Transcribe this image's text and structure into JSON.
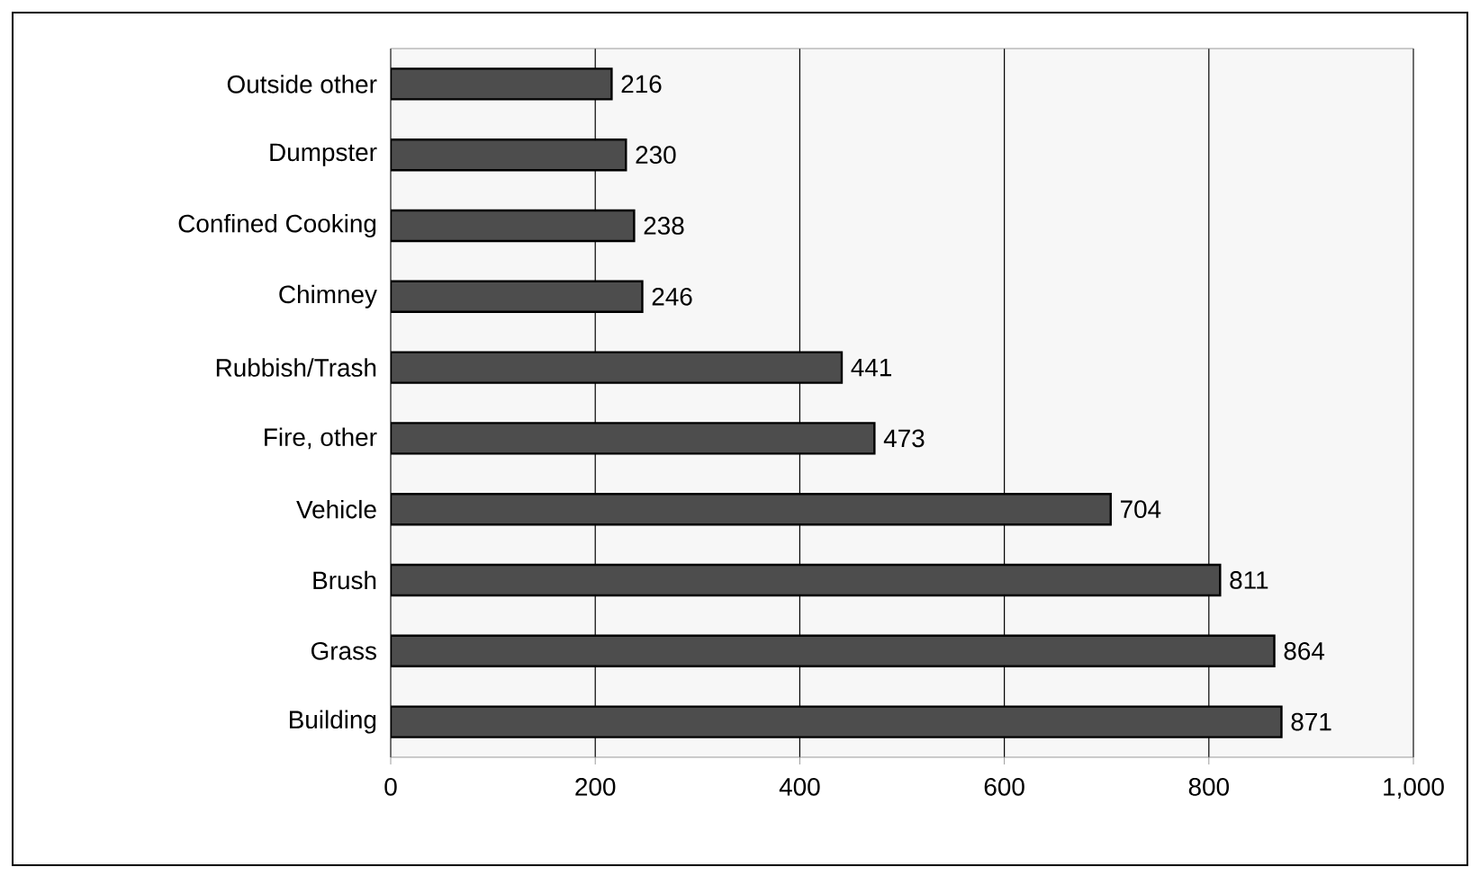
{
  "chart_data": {
    "type": "bar",
    "orientation": "horizontal",
    "categories": [
      "Outside other",
      "Dumpster",
      "Confined Cooking",
      "Chimney",
      "Rubbish/Trash",
      "Fire, other",
      "Vehicle",
      "Brush",
      "Grass",
      "Building"
    ],
    "values": [
      216,
      230,
      238,
      246,
      441,
      473,
      704,
      811,
      864,
      871
    ],
    "color": "#4d4d4d",
    "xlim": [
      0,
      1000
    ],
    "xticks": [
      0,
      200,
      400,
      600,
      800,
      {
        "value": 1000,
        "label": "1,000"
      }
    ],
    "grid": "x",
    "data_labels": true
  }
}
